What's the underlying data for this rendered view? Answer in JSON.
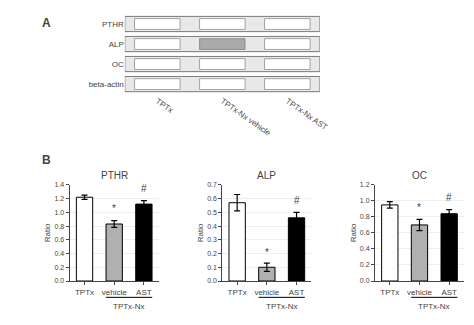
{
  "chart_data": [
    {
      "type": "gel",
      "title": "A",
      "categories": [
        "TPTx",
        "TPTx-Nx vehicle",
        "TPTx-Nx AST"
      ],
      "series": [
        {
          "name": "PTHR",
          "colors": [
            "white",
            "white",
            "white"
          ]
        },
        {
          "name": "ALP",
          "colors": [
            "white",
            "#aaaaaa",
            "white"
          ]
        },
        {
          "name": "OC",
          "colors": [
            "white",
            "white",
            "white"
          ]
        },
        {
          "name": "beta-actin",
          "colors": [
            "white",
            "white",
            "white"
          ]
        }
      ]
    },
    {
      "type": "bar",
      "title": "PTHR",
      "ylabel": "Ratio",
      "categories": [
        "TPTx",
        "vehicle",
        "AST"
      ],
      "values": [
        1.22,
        0.83,
        1.12
      ],
      "errors": [
        0.03,
        0.05,
        0.05
      ],
      "colors": [
        "white",
        "#b0b0b0",
        "black"
      ],
      "ylim": [
        0,
        1.4
      ],
      "yticks": [
        {
          "value": 0,
          "label": "0.0"
        },
        0.2,
        0.4,
        0.6,
        0.8,
        {
          "value": 1,
          "label": "1.0"
        },
        1.2,
        1.4
      ],
      "annotations": [
        {
          "text": "B"
        },
        {
          "category": "vehicle",
          "text": "*",
          "y": 0.95
        },
        {
          "category": "AST",
          "text": "#",
          "y": 1.24
        },
        {
          "categories": [
            "vehicle",
            "AST"
          ],
          "text": "TPTx-Nx"
        }
      ]
    },
    {
      "type": "bar",
      "title": "ALP",
      "ylabel": "Ratio",
      "categories": [
        "TPTx",
        "vehicle",
        "AST"
      ],
      "values": [
        0.57,
        0.1,
        0.46
      ],
      "errors": [
        0.06,
        0.03,
        0.04
      ],
      "colors": [
        "white",
        "#b0b0b0",
        "black"
      ],
      "ylim": [
        0,
        0.7
      ],
      "yticks": [
        {
          "value": 0,
          "label": "0.0"
        },
        0.1,
        0.2,
        0.3,
        0.4,
        0.5,
        0.6,
        0.7
      ],
      "annotations": [
        {
          "category": "vehicle",
          "text": "*",
          "y": 0.15
        },
        {
          "category": "AST",
          "text": "#",
          "y": 0.53
        },
        {
          "categories": [
            "vehicle",
            "AST"
          ],
          "text": "TPTx-Nx"
        }
      ]
    },
    {
      "type": "bar",
      "title": "OC",
      "ylabel": "Ratio",
      "categories": [
        "TPTx",
        "vehicle",
        "AST"
      ],
      "values": [
        0.95,
        0.7,
        0.84
      ],
      "errors": [
        0.04,
        0.07,
        0.05
      ],
      "colors": [
        "white",
        "#b0b0b0",
        "black"
      ],
      "ylim": [
        0,
        1.2
      ],
      "yticks": [
        {
          "value": 0,
          "label": "0.0"
        },
        0.2,
        0.4,
        0.6,
        0.8,
        {
          "value": 1,
          "label": "1.0"
        },
        1.2
      ],
      "annotations": [
        {
          "category": "vehicle",
          "text": "*",
          "y": 0.82
        },
        {
          "category": "AST",
          "text": "#",
          "y": 0.95
        },
        {
          "categories": [
            "vehicle",
            "AST"
          ],
          "text": "TPTx-Nx"
        }
      ]
    }
  ]
}
